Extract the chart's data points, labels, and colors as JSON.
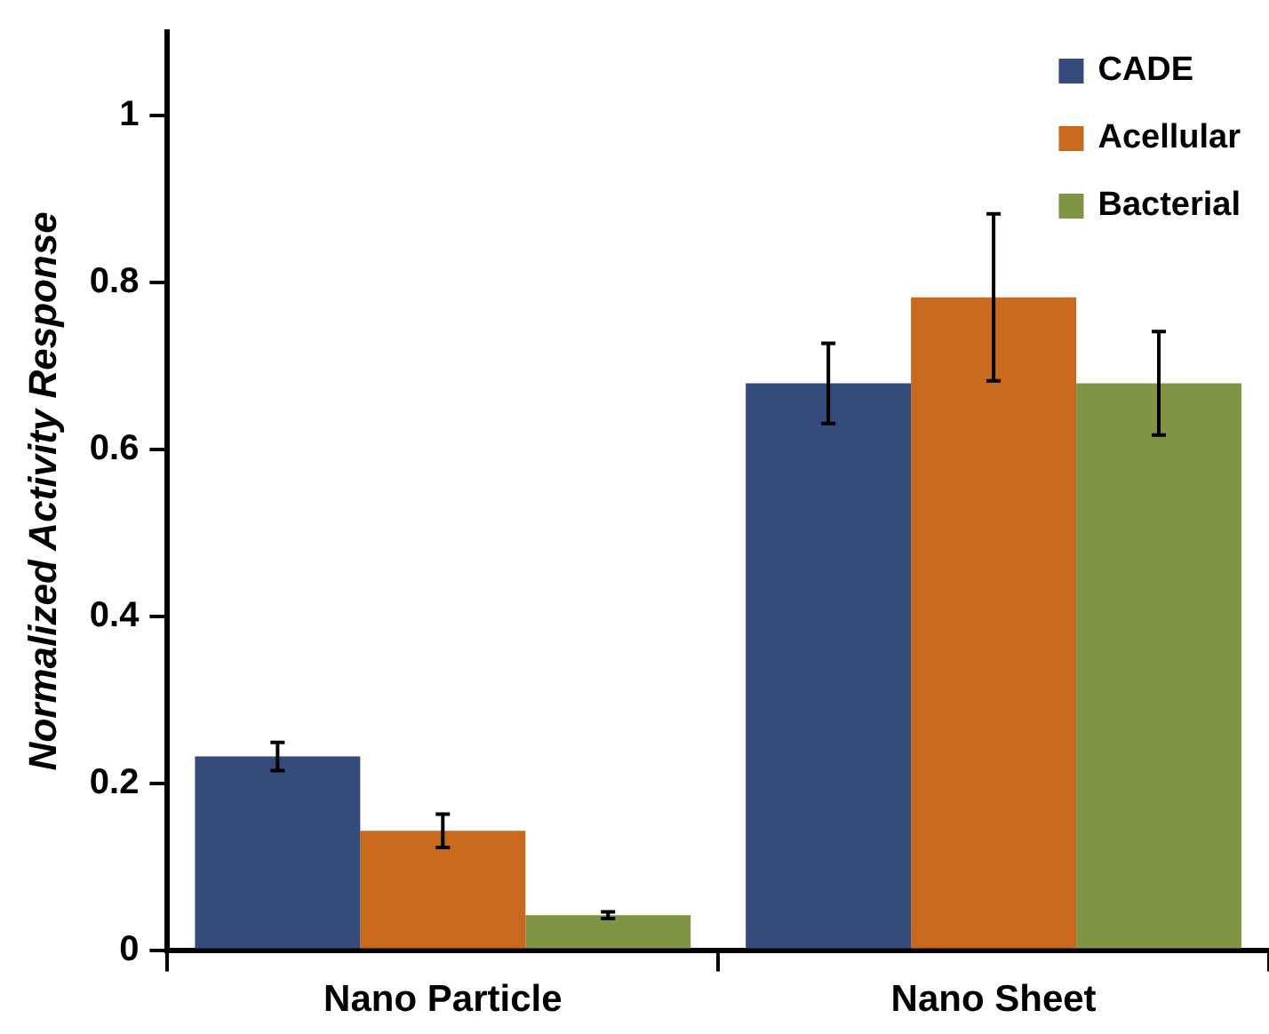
{
  "chart_data": {
    "type": "bar",
    "ylabel": "Normalized Activity Response",
    "categories": [
      "Nano Particle",
      "Nano Sheet"
    ],
    "series": [
      {
        "name": "CADE",
        "color": "#344b7c",
        "values": [
          0.232,
          0.679
        ],
        "errors": [
          0.017,
          0.048
        ]
      },
      {
        "name": "Acellular",
        "color": "#c8691e",
        "values": [
          0.143,
          0.782
        ],
        "errors": [
          0.02,
          0.1
        ]
      },
      {
        "name": "Bacterial",
        "color": "#7f9444",
        "values": [
          0.042,
          0.679
        ],
        "errors": [
          0.004,
          0.062
        ]
      }
    ],
    "ylim": [
      0,
      1.1
    ],
    "yticks": [
      0,
      0.2,
      0.4,
      0.6,
      0.8,
      1
    ],
    "grid": false,
    "legend": "top right"
  }
}
